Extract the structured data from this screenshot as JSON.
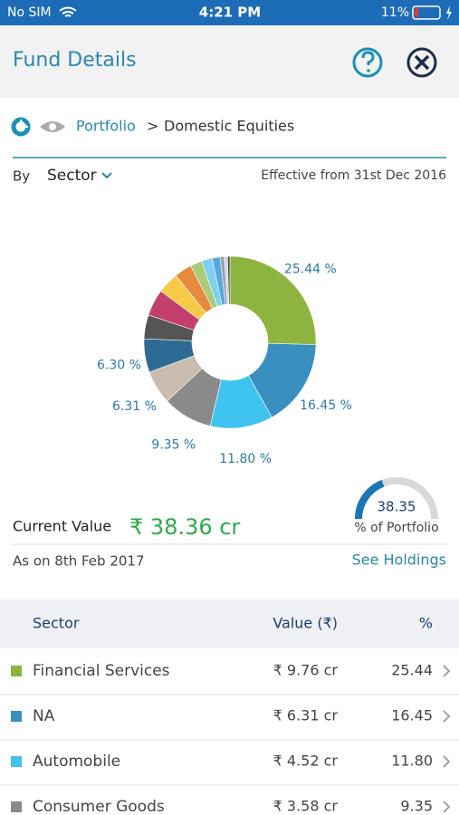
{
  "status_bar": {
    "carrier": "No SIM",
    "time": "4:21 PM",
    "battery": "11%"
  },
  "header": {
    "title": "Fund Details"
  },
  "breadcrumb": {
    "root": "Portfolio",
    "separator": ">",
    "current": "Domestic Equities"
  },
  "filter": {
    "by": "By",
    "selection": "Sector",
    "effective": "Effective from 31st Dec 2016"
  },
  "chart_data": {
    "type": "donut",
    "values": [
      25.44,
      16.45,
      11.8,
      9.35,
      6.31,
      6.3,
      4.5,
      5.0,
      4.0,
      3.3,
      2.2,
      2.0,
      1.5,
      0.8,
      0.6,
      0.45
    ],
    "value_labels": [
      "25.44 %",
      "16.45 %",
      "11.80 %",
      "9.35 %",
      "6.31 %",
      "6.30 %",
      null,
      null,
      null,
      null,
      null,
      null,
      null,
      null,
      null,
      null
    ],
    "colors": [
      "#8db43f",
      "#3a8fc1",
      "#3fc3f1",
      "#8a8a8a",
      "#c9bcae",
      "#2e6b94",
      "#555555",
      "#c2406b",
      "#f7c948",
      "#e68b3c",
      "#a9cc7a",
      "#7fd0f0",
      "#5aa7de",
      "#9aa3ad",
      "#cfd6dc",
      "#4a4a4a"
    ]
  },
  "summary": {
    "current_value_label": "Current Value",
    "current_value": "₹ 38.36 cr",
    "as_on": "As on 8th Feb 2017",
    "see_holdings": "See Holdings",
    "gauge": {
      "value": 38.35,
      "label": "% of Portfolio",
      "max": 100
    }
  },
  "table": {
    "columns": [
      "Sector",
      "Value (₹)",
      "%"
    ],
    "rows": [
      [
        "Financial Services",
        "₹ 9.76 cr",
        "25.44"
      ],
      [
        "NA",
        "₹ 6.31 cr",
        "16.45"
      ],
      [
        "Automobile",
        "₹ 4.52 cr",
        "11.80"
      ],
      [
        "Consumer Goods",
        "₹ 3.58 cr",
        "9.35"
      ]
    ]
  }
}
